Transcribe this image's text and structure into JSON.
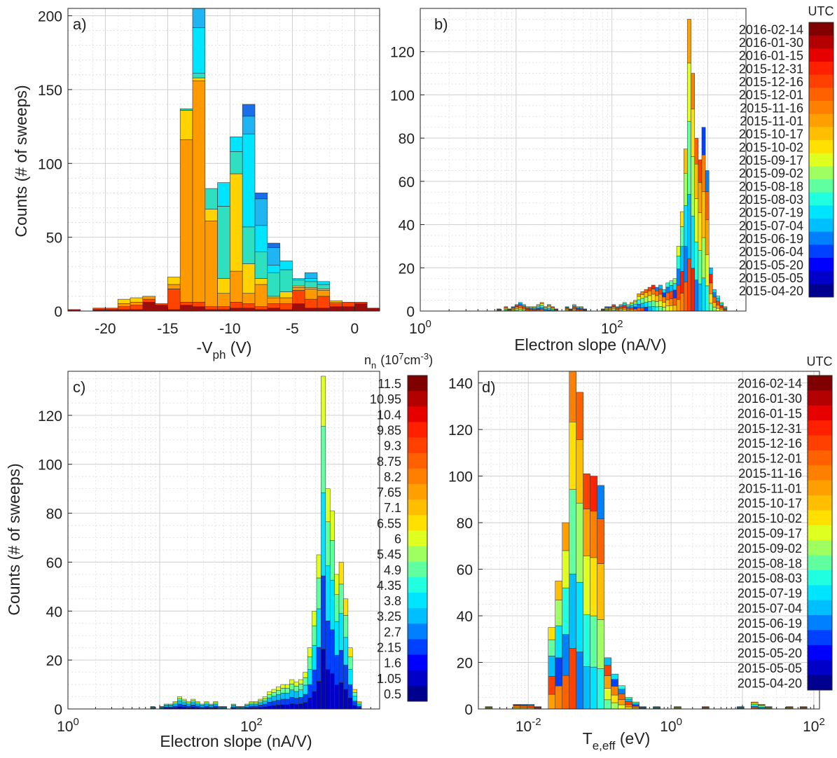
{
  "chart_data": [
    {
      "panel": "a)",
      "type": "bar",
      "stacked": true,
      "xscale": "linear",
      "xlabel": "-V",
      "xlabel_sub": "ph",
      "xlabel_tail": " (V)",
      "ylabel": "Counts (# of sweeps)",
      "xlim": [
        -23,
        2
      ],
      "ylim": [
        0,
        205
      ],
      "xticks": [
        -20,
        -15,
        -10,
        -5,
        0
      ],
      "xtick_labels": [
        "-20",
        "-15",
        "-10",
        "-5",
        "0"
      ],
      "yticks": [
        0,
        50,
        100,
        150,
        200
      ],
      "ytick_labels": [
        "0",
        "50",
        "100",
        "150",
        "200"
      ],
      "bin_width": 1,
      "bars": [
        {
          "x": -22.5,
          "total": 1,
          "segments": [
            1
          ]
        },
        {
          "x": -20.5,
          "total": 2,
          "segments": [
            1,
            1
          ]
        },
        {
          "x": -19.5,
          "total": 2,
          "segments": [
            1,
            1
          ]
        },
        {
          "x": -18.5,
          "total": 8,
          "segments": [
            1,
            2,
            2,
            3
          ]
        },
        {
          "x": -17.5,
          "total": 9,
          "segments": [
            1,
            3,
            2,
            3
          ]
        },
        {
          "x": -16.5,
          "total": 10,
          "segments": [
            6,
            2,
            2
          ]
        },
        {
          "x": -15.5,
          "total": 5,
          "segments": [
            4,
            1
          ]
        },
        {
          "x": -14.5,
          "total": 23,
          "segments": [
            1,
            14,
            3,
            5
          ]
        },
        {
          "x": -13.5,
          "total": 137,
          "segments": [
            4,
            2,
            110,
            20,
            1
          ]
        },
        {
          "x": -12.5,
          "total": 205,
          "segments": [
            3,
            3,
            150,
            2,
            3,
            31,
            13
          ]
        },
        {
          "x": -11.5,
          "total": 83,
          "segments": [
            1,
            2,
            58,
            8,
            14
          ]
        },
        {
          "x": -10.5,
          "total": 87,
          "segments": [
            1,
            2,
            9,
            10,
            49,
            16
          ]
        },
        {
          "x": -9.5,
          "total": 118,
          "segments": [
            2,
            4,
            21,
            66,
            15,
            10
          ]
        },
        {
          "x": -8.5,
          "total": 140,
          "segments": [
            2,
            3,
            7,
            20,
            25,
            63,
            12,
            8
          ]
        },
        {
          "x": -7.5,
          "total": 80,
          "segments": [
            1,
            2,
            15,
            4,
            18,
            18,
            18,
            4
          ]
        },
        {
          "x": -6.5,
          "total": 46,
          "segments": [
            2,
            3,
            4,
            1,
            16,
            5,
            12,
            3
          ]
        },
        {
          "x": -5.5,
          "total": 34,
          "segments": [
            1,
            4,
            4,
            4,
            15,
            6
          ]
        },
        {
          "x": -4.5,
          "total": 22,
          "segments": [
            5,
            9,
            2,
            1,
            4,
            1
          ]
        },
        {
          "x": -3.5,
          "total": 26,
          "segments": [
            2,
            6,
            7,
            1,
            4,
            2,
            4
          ]
        },
        {
          "x": -2.5,
          "total": 20,
          "segments": [
            2,
            8,
            4,
            1,
            3,
            2
          ]
        },
        {
          "x": -1.5,
          "total": 7,
          "segments": [
            3,
            2,
            1,
            1
          ]
        },
        {
          "x": -0.5,
          "total": 6,
          "segments": [
            3,
            3
          ]
        },
        {
          "x": 0.5,
          "total": 6,
          "segments": [
            5,
            1
          ]
        },
        {
          "x": 1.5,
          "total": 2,
          "segments": [
            2
          ]
        }
      ],
      "segment_colors": [
        "#9c0d0d",
        "#ff4400",
        "#ff9900",
        "#ffd200",
        "#2fe0c0",
        "#00e5ff",
        "#1fb5f2",
        "#1a6ee8",
        "#0a22c8"
      ]
    },
    {
      "panel": "b)",
      "type": "bar",
      "stacked": true,
      "xscale": "log",
      "xlabel": "Electron slope (nA/V)",
      "xlim": [
        1,
        2500
      ],
      "ylim": [
        0,
        140
      ],
      "xticks": [
        1,
        100
      ],
      "xtick_labels": [
        "10",
        "10"
      ],
      "xtick_exponents": [
        "0",
        "2"
      ],
      "yticks": [
        0,
        20,
        40,
        60,
        80,
        100,
        120
      ],
      "ytick_labels": [
        "0",
        "20",
        "40",
        "60",
        "80",
        "100",
        "120"
      ],
      "totals": [
        1,
        0,
        2,
        1,
        2,
        3,
        4,
        3,
        2,
        2,
        2,
        3,
        4,
        2,
        3,
        2,
        1,
        0,
        0,
        2,
        1,
        3,
        2,
        2,
        1,
        0,
        0,
        0,
        0,
        1,
        2,
        2,
        3,
        2,
        3,
        4,
        3,
        4,
        5,
        8,
        9,
        10,
        11,
        12,
        11,
        12,
        10,
        13,
        14,
        15,
        30,
        46,
        75,
        135,
        110,
        80,
        70,
        85,
        65,
        20,
        10,
        7,
        4,
        2
      ],
      "log_xmin": 0.8,
      "log_xmax": 3.2
    },
    {
      "panel": "c)",
      "type": "bar",
      "stacked": true,
      "xscale": "log",
      "xlabel": "Electron slope (nA/V)",
      "ylabel": "Counts (# of sweeps)",
      "xlim": [
        1,
        2500
      ],
      "ylim": [
        0,
        138
      ],
      "xticks": [
        1,
        100
      ],
      "xtick_labels": [
        "10",
        "10"
      ],
      "xtick_exponents": [
        "0",
        "2"
      ],
      "yticks": [
        0,
        20,
        40,
        60,
        80,
        100,
        120
      ],
      "ytick_labels": [
        "0",
        "20",
        "40",
        "60",
        "80",
        "100",
        "120"
      ],
      "totals": [
        1,
        0,
        1,
        2,
        2,
        3,
        5,
        4,
        3,
        4,
        3,
        2,
        3,
        2,
        3,
        1,
        1,
        0,
        2,
        1,
        1,
        2,
        3,
        3,
        4,
        5,
        7,
        8,
        9,
        10,
        10,
        12,
        11,
        12,
        15,
        25,
        40,
        63,
        136,
        90,
        81,
        55,
        60,
        45,
        25,
        8,
        3
      ],
      "log_xmin": 0.9,
      "log_xmax": 3.2
    },
    {
      "panel": "d)",
      "type": "bar",
      "stacked": true,
      "xscale": "log",
      "xlabel": "T",
      "xlabel_sub": "e,eff",
      "xlabel_tail": " (eV)",
      "xlim": [
        0.002,
        120
      ],
      "ylim": [
        0,
        145
      ],
      "xticks": [
        0.01,
        1,
        100
      ],
      "xtick_labels": [
        "10",
        "10",
        "10"
      ],
      "xtick_exponents": [
        "-2",
        "0",
        "2"
      ],
      "yticks": [
        0,
        20,
        40,
        60,
        80,
        100,
        120,
        140
      ],
      "ytick_labels": [
        "0",
        "20",
        "40",
        "60",
        "80",
        "100",
        "120",
        "140"
      ],
      "totals": [
        0,
        1,
        0,
        0,
        0,
        2,
        2,
        2,
        1,
        0,
        35,
        55,
        80,
        145,
        136,
        101,
        100,
        96,
        22,
        15,
        10,
        5,
        3,
        1,
        0,
        1,
        0,
        0,
        1,
        0,
        0,
        0,
        1,
        0,
        0,
        0,
        0,
        1,
        0,
        3,
        2,
        1,
        0,
        0,
        1,
        0,
        1,
        0,
        0
      ],
      "log_xmin": -2.7,
      "log_xmax": 2.1
    }
  ],
  "colorbars": [
    {
      "title": "UTC",
      "labels": [
        "2016-02-14",
        "2016-01-30",
        "2016-01-15",
        "2015-12-31",
        "2015-12-16",
        "2015-12-01",
        "2015-11-16",
        "2015-11-01",
        "2015-10-17",
        "2015-10-02",
        "2015-09-17",
        "2015-09-02",
        "2015-08-18",
        "2015-08-03",
        "2015-07-19",
        "2015-07-04",
        "2015-06-19",
        "2015-06-04",
        "2015-05-20",
        "2015-05-05",
        "2015-04-20"
      ]
    },
    {
      "title_html": "n",
      "title_sub": "n",
      "title_tail": "(10",
      "title_exp": "7",
      "title_unit": "cm",
      "title_unit_exp": "-3",
      "title_close": ")",
      "labels": [
        "11.5",
        "10.95",
        "10.4",
        "9.85",
        "9.3",
        "8.75",
        "8.2",
        "7.65",
        "7.1",
        "6.55",
        "6",
        "5.45",
        "4.9",
        "4.35",
        "3.8",
        "3.25",
        "2.7",
        "2.15",
        "1.6",
        "1.05",
        "0.5"
      ]
    },
    {
      "title": "UTC",
      "labels": [
        "2016-02-14",
        "2016-01-30",
        "2016-01-15",
        "2015-12-31",
        "2015-12-16",
        "2015-12-01",
        "2015-11-16",
        "2015-11-01",
        "2015-10-17",
        "2015-10-02",
        "2015-09-17",
        "2015-09-02",
        "2015-08-18",
        "2015-08-03",
        "2015-07-19",
        "2015-07-04",
        "2015-06-19",
        "2015-06-04",
        "2015-05-20",
        "2015-05-05",
        "2015-04-20"
      ]
    }
  ],
  "jet_colors": [
    "#00008f",
    "#0000c8",
    "#0000ff",
    "#0040ff",
    "#0080ff",
    "#00bfff",
    "#00e5ff",
    "#20ffdf",
    "#60ff9f",
    "#9fff60",
    "#dfff20",
    "#ffe000",
    "#ffbf00",
    "#ff9f00",
    "#ff8000",
    "#ff6000",
    "#ff4000",
    "#ff2000",
    "#e60000",
    "#b30000",
    "#800000"
  ]
}
